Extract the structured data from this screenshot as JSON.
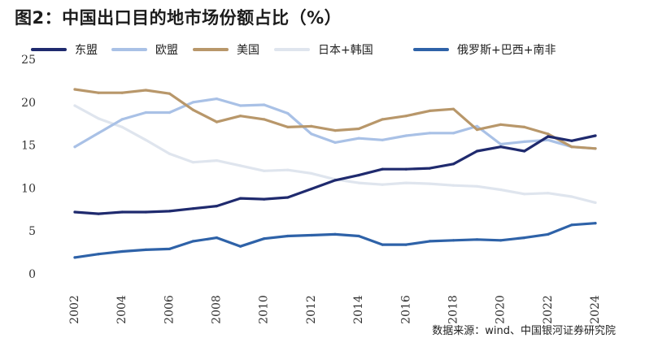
{
  "title": "图2：中国出口目的地市场份额占比（%）",
  "source": "数据来源：wind、中国银河证券研究院",
  "chart_data": {
    "type": "line",
    "ylim": [
      0,
      25
    ],
    "yticks": [
      0,
      5,
      10,
      15,
      20,
      25
    ],
    "xticks": [
      "2002",
      "2004",
      "2006",
      "2008",
      "2010",
      "2012",
      "2014",
      "2016",
      "2018",
      "2020",
      "2022",
      "2024"
    ],
    "x": [
      2002,
      2003,
      2004,
      2005,
      2006,
      2007,
      2008,
      2009,
      2010,
      2011,
      2012,
      2013,
      2014,
      2015,
      2016,
      2017,
      2018,
      2019,
      2020,
      2021,
      2022,
      2023,
      2024
    ],
    "grid": false,
    "legend_position": "top",
    "series": [
      {
        "name": "东盟",
        "color": "#1f2a6e",
        "values": [
          7.2,
          7.0,
          7.2,
          7.2,
          7.3,
          7.6,
          7.9,
          8.8,
          8.7,
          8.9,
          9.9,
          10.9,
          11.5,
          12.2,
          12.2,
          12.3,
          12.8,
          14.3,
          14.8,
          14.3,
          16.0,
          15.5,
          16.1
        ]
      },
      {
        "name": "欧盟",
        "color": "#a9c1e6",
        "values": [
          14.8,
          16.4,
          18.0,
          18.8,
          18.8,
          20.0,
          20.4,
          19.6,
          19.7,
          18.7,
          16.3,
          15.3,
          15.8,
          15.6,
          16.1,
          16.4,
          16.4,
          17.2,
          15.1,
          15.4,
          15.6,
          14.8,
          14.6
        ]
      },
      {
        "name": "美国",
        "color": "#b8976a",
        "values": [
          21.5,
          21.1,
          21.1,
          21.4,
          21.0,
          19.1,
          17.7,
          18.4,
          18.0,
          17.1,
          17.2,
          16.7,
          16.9,
          18.0,
          18.4,
          19.0,
          19.2,
          16.8,
          17.4,
          17.1,
          16.3,
          14.8,
          14.6
        ]
      },
      {
        "name": "日本+韩国",
        "color": "#dfe5ee",
        "values": [
          19.6,
          18.1,
          17.1,
          15.6,
          14.0,
          13.0,
          13.2,
          12.6,
          12.0,
          12.1,
          11.7,
          11.0,
          10.6,
          10.4,
          10.6,
          10.5,
          10.3,
          10.2,
          9.8,
          9.3,
          9.4,
          9.0,
          8.3
        ]
      },
      {
        "name": "俄罗斯+巴西+南非",
        "color": "#2e62a8",
        "values": [
          1.9,
          2.3,
          2.6,
          2.8,
          2.9,
          3.8,
          4.2,
          3.2,
          4.1,
          4.4,
          4.5,
          4.6,
          4.4,
          3.4,
          3.4,
          3.8,
          3.9,
          4.0,
          3.9,
          4.2,
          4.6,
          5.7,
          5.9
        ]
      }
    ]
  }
}
